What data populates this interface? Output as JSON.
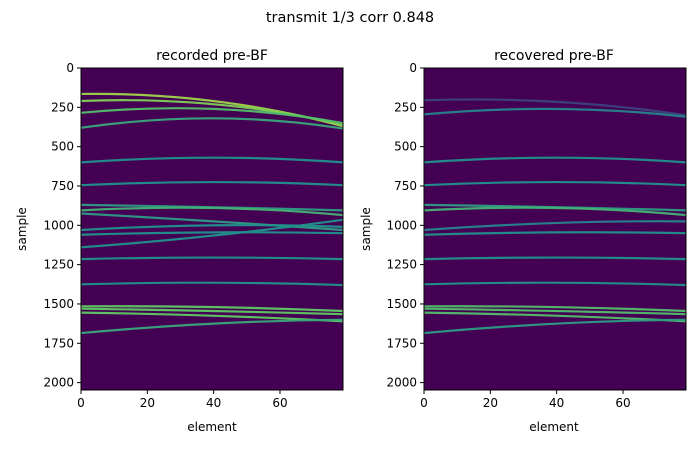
{
  "figure": {
    "suptitle": "transmit 1/3   corr 0.848"
  },
  "colors": {
    "background": "#440154",
    "colormap": "viridis",
    "colormap_stops": [
      "#440154",
      "#3b528b",
      "#21918c",
      "#5ec962",
      "#fde725"
    ]
  },
  "chart_data": [
    {
      "type": "heatmap",
      "title": "recorded pre-BF",
      "xlabel": "element",
      "ylabel": "sample",
      "xlim": [
        0,
        79
      ],
      "ylim": [
        2047,
        0
      ],
      "xticks": [
        0,
        20,
        40,
        60
      ],
      "yticks": [
        0,
        250,
        500,
        750,
        1000,
        1250,
        1500,
        1750,
        2000
      ],
      "echoes": [
        {
          "samples_at_elements": [
            [
              0,
              165
            ],
            [
              40,
              210
            ],
            [
              79,
              370
            ]
          ],
          "intensity": 0.85
        },
        {
          "samples_at_elements": [
            [
              0,
              210
            ],
            [
              40,
              230
            ],
            [
              79,
              360
            ]
          ],
          "intensity": 0.8
        },
        {
          "samples_at_elements": [
            [
              0,
              285
            ],
            [
              40,
              260
            ],
            [
              79,
              350
            ]
          ],
          "intensity": 0.7
        },
        {
          "samples_at_elements": [
            [
              0,
              380
            ],
            [
              40,
              320
            ],
            [
              79,
              385
            ]
          ],
          "intensity": 0.6
        },
        {
          "samples_at_elements": [
            [
              0,
              600
            ],
            [
              40,
              570
            ],
            [
              79,
              600
            ]
          ],
          "intensity": 0.5
        },
        {
          "samples_at_elements": [
            [
              0,
              745
            ],
            [
              40,
              725
            ],
            [
              79,
              745
            ]
          ],
          "intensity": 0.5
        },
        {
          "samples_at_elements": [
            [
              0,
              870
            ],
            [
              40,
              885
            ],
            [
              79,
              905
            ]
          ],
          "intensity": 0.55
        },
        {
          "samples_at_elements": [
            [
              0,
              905
            ],
            [
              40,
              890
            ],
            [
              79,
              935
            ]
          ],
          "intensity": 0.65
        },
        {
          "samples_at_elements": [
            [
              0,
              925
            ],
            [
              40,
              975
            ],
            [
              79,
              1030
            ]
          ],
          "intensity": 0.55
        },
        {
          "samples_at_elements": [
            [
              0,
              1030
            ],
            [
              40,
              1000
            ],
            [
              79,
              1010
            ]
          ],
          "intensity": 0.5
        },
        {
          "samples_at_elements": [
            [
              0,
              1140
            ],
            [
              40,
              1065
            ],
            [
              79,
              965
            ]
          ],
          "intensity": 0.5
        },
        {
          "samples_at_elements": [
            [
              0,
              1060
            ],
            [
              40,
              1045
            ],
            [
              79,
              1050
            ]
          ],
          "intensity": 0.5
        },
        {
          "samples_at_elements": [
            [
              0,
              1215
            ],
            [
              40,
              1205
            ],
            [
              79,
              1215
            ]
          ],
          "intensity": 0.5
        },
        {
          "samples_at_elements": [
            [
              0,
              1375
            ],
            [
              40,
              1365
            ],
            [
              79,
              1380
            ]
          ],
          "intensity": 0.5
        },
        {
          "samples_at_elements": [
            [
              0,
              1515
            ],
            [
              40,
              1520
            ],
            [
              79,
              1545
            ]
          ],
          "intensity": 0.75
        },
        {
          "samples_at_elements": [
            [
              0,
              1530
            ],
            [
              40,
              1545
            ],
            [
              79,
              1565
            ]
          ],
          "intensity": 0.75
        },
        {
          "samples_at_elements": [
            [
              0,
              1555
            ],
            [
              40,
              1575
            ],
            [
              79,
              1610
            ]
          ],
          "intensity": 0.75
        },
        {
          "samples_at_elements": [
            [
              0,
              1685
            ],
            [
              40,
              1625
            ],
            [
              79,
              1600
            ]
          ],
          "intensity": 0.6
        }
      ]
    },
    {
      "type": "heatmap",
      "title": "recovered pre-BF",
      "xlabel": "element",
      "ylabel": "sample",
      "xlim": [
        0,
        79
      ],
      "ylim": [
        2047,
        0
      ],
      "xticks": [
        0,
        20,
        40,
        60
      ],
      "yticks": [
        0,
        250,
        500,
        750,
        1000,
        1250,
        1500,
        1750,
        2000
      ],
      "echoes": [
        {
          "samples_at_elements": [
            [
              0,
              205
            ],
            [
              40,
              215
            ],
            [
              79,
              300
            ]
          ],
          "intensity": 0.2
        },
        {
          "samples_at_elements": [
            [
              0,
              295
            ],
            [
              40,
              260
            ],
            [
              79,
              310
            ]
          ],
          "intensity": 0.45
        },
        {
          "samples_at_elements": [
            [
              0,
              600
            ],
            [
              40,
              570
            ],
            [
              79,
              600
            ]
          ],
          "intensity": 0.5
        },
        {
          "samples_at_elements": [
            [
              0,
              745
            ],
            [
              40,
              725
            ],
            [
              79,
              745
            ]
          ],
          "intensity": 0.5
        },
        {
          "samples_at_elements": [
            [
              0,
              870
            ],
            [
              40,
              885
            ],
            [
              79,
              905
            ]
          ],
          "intensity": 0.55
        },
        {
          "samples_at_elements": [
            [
              0,
              905
            ],
            [
              40,
              890
            ],
            [
              79,
              935
            ]
          ],
          "intensity": 0.65
        },
        {
          "samples_at_elements": [
            [
              0,
              1030
            ],
            [
              40,
              985
            ],
            [
              79,
              975
            ]
          ],
          "intensity": 0.45
        },
        {
          "samples_at_elements": [
            [
              0,
              1060
            ],
            [
              40,
              1045
            ],
            [
              79,
              1050
            ]
          ],
          "intensity": 0.5
        },
        {
          "samples_at_elements": [
            [
              0,
              1215
            ],
            [
              40,
              1205
            ],
            [
              79,
              1215
            ]
          ],
          "intensity": 0.5
        },
        {
          "samples_at_elements": [
            [
              0,
              1375
            ],
            [
              40,
              1365
            ],
            [
              79,
              1380
            ]
          ],
          "intensity": 0.5
        },
        {
          "samples_at_elements": [
            [
              0,
              1515
            ],
            [
              40,
              1520
            ],
            [
              79,
              1545
            ]
          ],
          "intensity": 0.7
        },
        {
          "samples_at_elements": [
            [
              0,
              1530
            ],
            [
              40,
              1545
            ],
            [
              79,
              1565
            ]
          ],
          "intensity": 0.7
        },
        {
          "samples_at_elements": [
            [
              0,
              1555
            ],
            [
              40,
              1575
            ],
            [
              79,
              1610
            ]
          ],
          "intensity": 0.7
        },
        {
          "samples_at_elements": [
            [
              0,
              1685
            ],
            [
              40,
              1625
            ],
            [
              79,
              1600
            ]
          ],
          "intensity": 0.55
        }
      ]
    }
  ]
}
